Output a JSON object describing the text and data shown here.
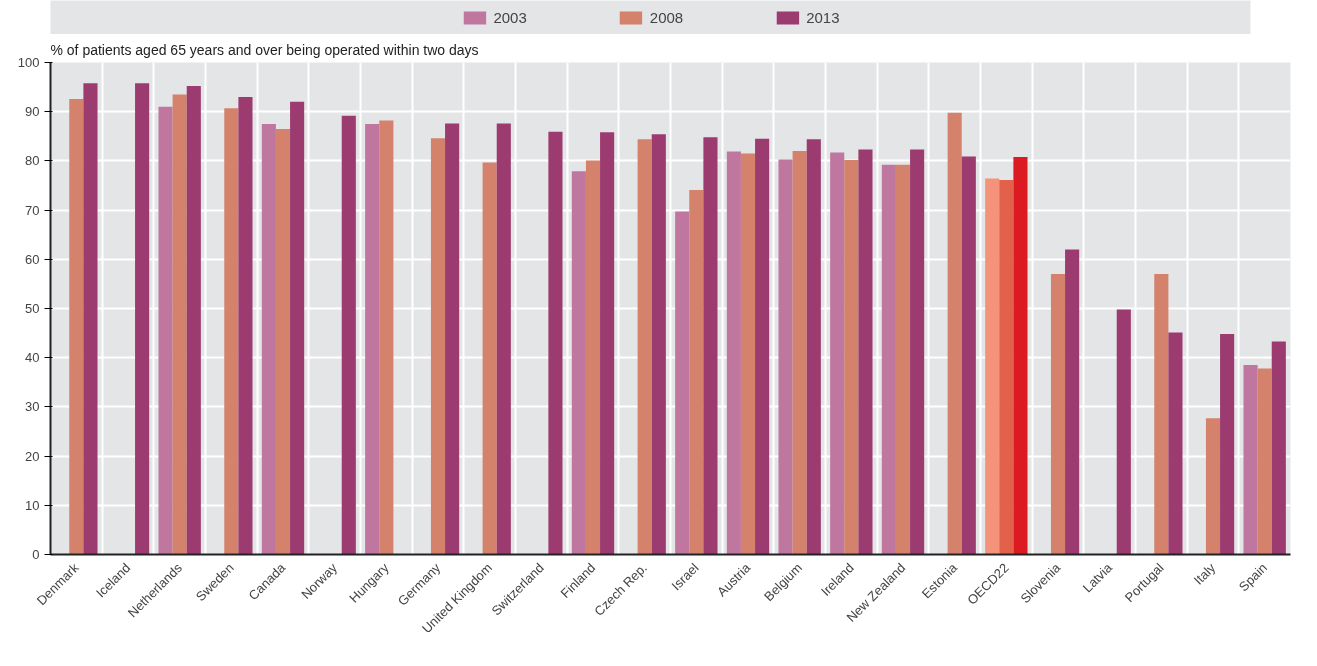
{
  "chart_data": {
    "type": "bar",
    "ylabel": "% of patients aged 65 years and over being operated within two days",
    "categories": [
      "Denmark",
      "Iceland",
      "Netherlands",
      "Sweden",
      "Canada",
      "Norway",
      "Hungary",
      "Germany",
      "United Kingdom",
      "Switzerland",
      "Finland",
      "Czech Rep.",
      "Israel",
      "Austria",
      "Belgium",
      "Ireland",
      "New Zealand",
      "Estonia",
      "OECD22",
      "Slovenia",
      "Latvia",
      "Portugal",
      "Italy",
      "Spain"
    ],
    "series": [
      {
        "name": "2003",
        "color": "#bf779f",
        "colors": [
          "#bf779f",
          "#bf779f",
          "#bf779f",
          "#bf779f",
          "#bf779f",
          "#bf779f",
          "#bf779f",
          "#bf779f",
          "#bf779f",
          "#bf779f",
          "#bf779f",
          "#bf779f",
          "#bf779f",
          "#bf779f",
          "#bf779f",
          "#bf779f",
          "#bf779f",
          "#bf779f",
          "#f4937a",
          "#bf779f",
          "#bf779f",
          "#bf779f",
          "#bf779f",
          "#bf779f"
        ],
        "values": [
          null,
          null,
          91.0,
          null,
          87.5,
          null,
          87.5,
          null,
          null,
          null,
          77.9,
          null,
          69.7,
          81.9,
          80.3,
          81.7,
          79.2,
          null,
          76.4,
          null,
          null,
          null,
          null,
          38.5
        ]
      },
      {
        "name": "2008",
        "color": "#d4826b",
        "colors": [
          "#d4826b",
          "#d4826b",
          "#d4826b",
          "#d4826b",
          "#d4826b",
          "#d4826b",
          "#d4826b",
          "#d4826b",
          "#d4826b",
          "#d4826b",
          "#d4826b",
          "#d4826b",
          "#d4826b",
          "#d4826b",
          "#d4826b",
          "#d4826b",
          "#d4826b",
          "#d4826b",
          "#e2614a",
          "#d4826b",
          "#d4826b",
          "#d4826b",
          "#d4826b",
          "#d4826b"
        ],
        "values": [
          92.6,
          null,
          93.5,
          90.7,
          86.5,
          null,
          88.2,
          84.6,
          79.7,
          null,
          80.1,
          84.4,
          74.1,
          81.5,
          82.0,
          80.2,
          79.2,
          89.8,
          76.1,
          57.0,
          null,
          57.0,
          27.7,
          37.8
        ]
      },
      {
        "name": "2013",
        "color": "#9b3b70",
        "colors": [
          "#9b3b70",
          "#9b3b70",
          "#9b3b70",
          "#9b3b70",
          "#9b3b70",
          "#9b3b70",
          "#9b3b70",
          "#9b3b70",
          "#9b3b70",
          "#9b3b70",
          "#9b3b70",
          "#9b3b70",
          "#9b3b70",
          "#9b3b70",
          "#9b3b70",
          "#9b3b70",
          "#9b3b70",
          "#9b3b70",
          "#dc1a22",
          "#9b3b70",
          "#9b3b70",
          "#9b3b70",
          "#9b3b70",
          "#9b3b70"
        ],
        "values": [
          95.8,
          95.8,
          95.2,
          93.0,
          92.0,
          89.2,
          null,
          87.6,
          87.6,
          85.9,
          85.8,
          85.4,
          84.8,
          84.5,
          84.4,
          82.3,
          82.3,
          80.9,
          80.8,
          62.0,
          49.8,
          45.1,
          44.8,
          43.3
        ]
      }
    ],
    "ylim": [
      0,
      100
    ],
    "yticks": [
      0,
      10,
      20,
      30,
      40,
      50,
      60,
      70,
      80,
      90,
      100
    ],
    "grid": true,
    "legend": "top"
  }
}
